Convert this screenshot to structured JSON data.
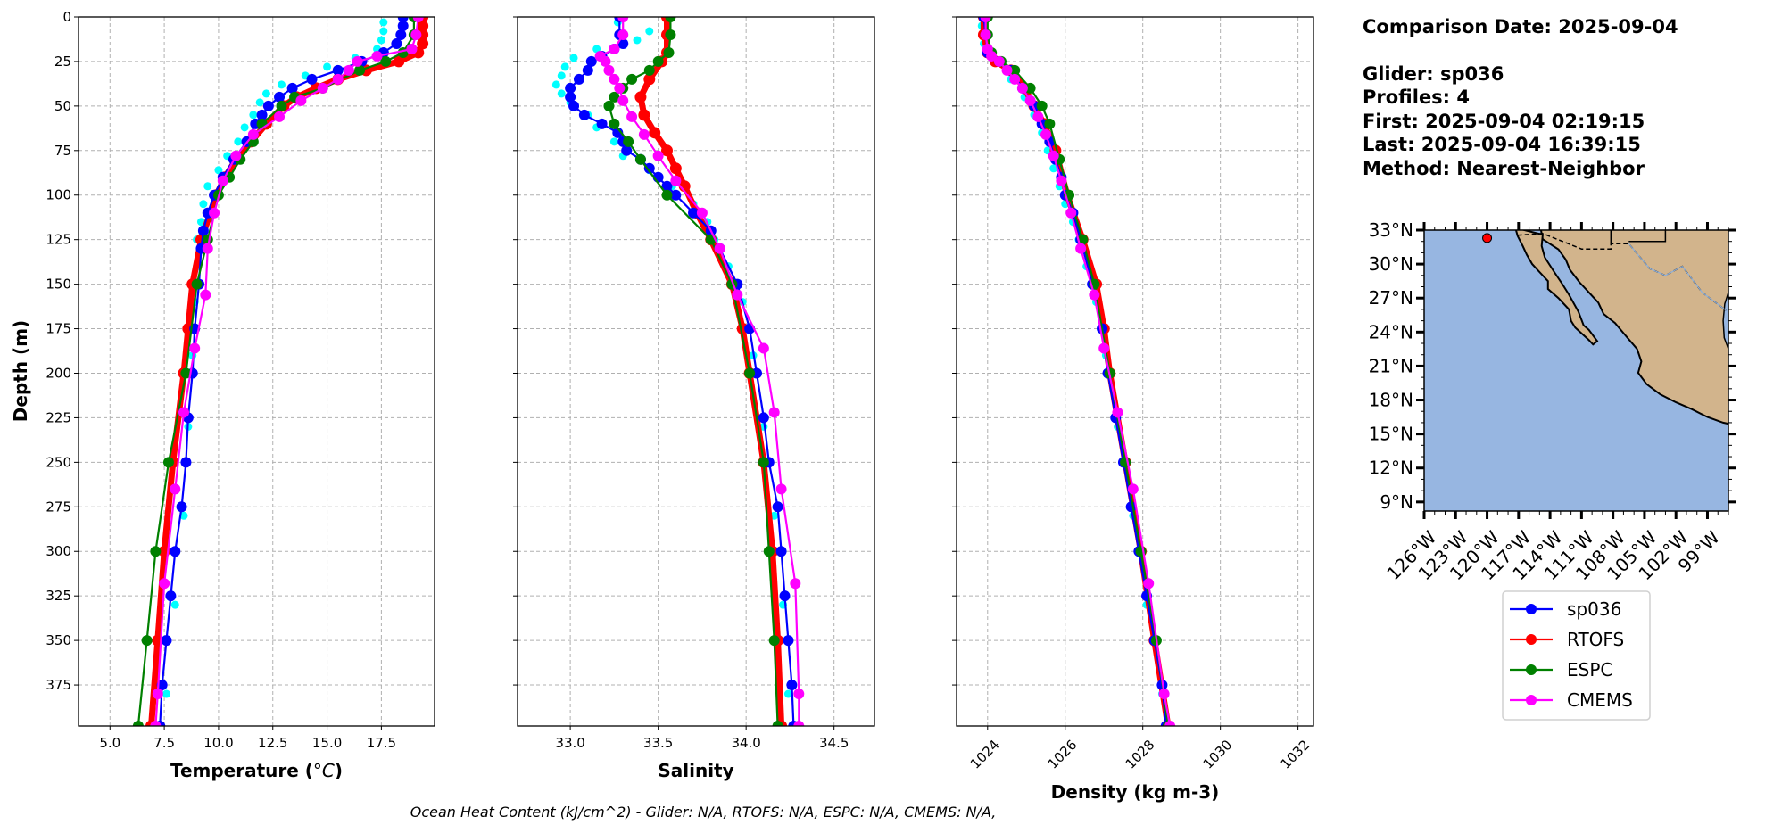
{
  "info": {
    "comparison_date": "Comparison Date: 2025-09-04",
    "glider": "Glider: sp036",
    "profiles": "Profiles: 4",
    "first": "First: 2025-09-04 02:19:15",
    "last": "Last: 2025-09-04 16:39:15",
    "method": "Method: Nearest-Neighbor"
  },
  "footer": "Ocean Heat Content (kJ/cm^2) - Glider: N/A,  RTOFS: N/A,  ESPC: N/A,  CMEMS: N/A,",
  "colors": {
    "sp036": "#0000ff",
    "RTOFS": "#ff0000",
    "ESPC": "#008000",
    "CMEMS": "#ff00ff",
    "raw": "#00ffff",
    "ocean": "#97b6e1",
    "land": "#d2b48c",
    "grid": "#b0b0b0"
  },
  "legend": {
    "placement": "below map",
    "entries": [
      "sp036",
      "RTOFS",
      "ESPC",
      "CMEMS"
    ]
  },
  "chart_data": [
    {
      "type": "line",
      "xlabel": "Temperature (°C)",
      "ylabel": "Depth (m)",
      "xlim": [
        3.55,
        19.95
      ],
      "ylim": [
        398,
        0
      ],
      "y_inverted": true,
      "grid": true,
      "xticks": [
        5.0,
        7.5,
        10.0,
        12.5,
        15.0,
        17.5
      ],
      "xtick_labels": [
        "5.0",
        "7.5",
        "10.0",
        "12.5",
        "15.0",
        "17.5"
      ],
      "yticks": [
        0,
        25,
        50,
        75,
        100,
        125,
        150,
        175,
        200,
        225,
        250,
        275,
        300,
        325,
        350,
        375
      ],
      "ytick_labels": [
        "0",
        "25",
        "50",
        "75",
        "100",
        "125",
        "150",
        "175",
        "200",
        "225",
        "250",
        "275",
        "300",
        "325",
        "350",
        "375"
      ],
      "raw": {
        "depth": [
          3,
          8,
          13,
          18,
          23,
          28,
          33,
          38,
          43,
          48,
          55,
          62,
          70,
          78,
          86,
          95,
          105,
          115,
          125,
          140,
          160,
          190,
          230,
          280,
          330,
          380
        ],
        "values": [
          17.6,
          17.6,
          17.5,
          17.3,
          16.3,
          15.0,
          14.0,
          12.9,
          12.2,
          11.9,
          11.6,
          11.2,
          10.9,
          10.4,
          10.0,
          9.5,
          9.3,
          9.2,
          9.0,
          9.0,
          8.9,
          8.8,
          8.6,
          8.4,
          8.0,
          7.6
        ]
      },
      "series": [
        {
          "name": "RTOFS",
          "depth": [
            0,
            5,
            10,
            15,
            20,
            25,
            30,
            35,
            40,
            45,
            50,
            60,
            70,
            80,
            90,
            100,
            125,
            150,
            175,
            200,
            250,
            300,
            350,
            398
          ],
          "values": [
            19.4,
            19.4,
            19.4,
            19.4,
            19.2,
            18.3,
            16.8,
            15.5,
            14.5,
            13.6,
            13.0,
            12.2,
            11.5,
            10.8,
            10.3,
            9.9,
            9.2,
            8.8,
            8.6,
            8.4,
            7.9,
            7.5,
            7.2,
            6.9
          ]
        },
        {
          "name": "sp036",
          "depth": [
            0,
            5,
            10,
            15,
            20,
            25,
            30,
            35,
            40,
            45,
            50,
            55,
            60,
            70,
            80,
            90,
            100,
            110,
            120,
            130,
            150,
            175,
            200,
            225,
            250,
            275,
            300,
            325,
            350,
            375,
            398
          ],
          "values": [
            18.5,
            18.5,
            18.4,
            18.2,
            17.6,
            16.6,
            15.5,
            14.3,
            13.4,
            12.8,
            12.3,
            12.0,
            11.7,
            11.3,
            10.7,
            10.2,
            9.8,
            9.5,
            9.3,
            9.2,
            9.1,
            8.9,
            8.8,
            8.6,
            8.5,
            8.3,
            8.0,
            7.8,
            7.6,
            7.4,
            7.3
          ]
        },
        {
          "name": "ESPC",
          "depth": [
            0,
            10,
            20,
            25,
            30,
            40,
            45,
            50,
            60,
            70,
            80,
            90,
            100,
            125,
            150,
            200,
            250,
            300,
            350,
            398
          ],
          "values": [
            19.0,
            19.0,
            18.5,
            17.7,
            16.5,
            14.8,
            13.5,
            12.9,
            12.0,
            11.6,
            11.0,
            10.5,
            10.0,
            9.5,
            9.0,
            8.5,
            7.7,
            7.1,
            6.7,
            6.3
          ]
        },
        {
          "name": "CMEMS",
          "depth": [
            0,
            10,
            18,
            22,
            25,
            30,
            35,
            40,
            47,
            56,
            66,
            78,
            92,
            110,
            130,
            156,
            186,
            222,
            265,
            318,
            380,
            398
          ],
          "values": [
            19.2,
            19.1,
            18.9,
            17.3,
            16.4,
            16.0,
            15.5,
            14.8,
            13.8,
            12.8,
            11.6,
            10.8,
            10.2,
            9.8,
            9.5,
            9.4,
            8.9,
            8.4,
            8.0,
            7.5,
            7.2,
            7.1
          ]
        }
      ]
    },
    {
      "type": "line",
      "xlabel": "Salinity",
      "xlim": [
        32.7,
        34.73
      ],
      "ylim": [
        398,
        0
      ],
      "y_inverted": true,
      "grid": true,
      "xticks": [
        33.0,
        33.5,
        34.0,
        34.5
      ],
      "xtick_labels": [
        "33.0",
        "33.5",
        "34.0",
        "34.5"
      ],
      "yticks": [
        0,
        25,
        50,
        75,
        100,
        125,
        150,
        175,
        200,
        225,
        250,
        275,
        300,
        325,
        350,
        375
      ],
      "raw": {
        "depth": [
          3,
          8,
          13,
          18,
          23,
          28,
          33,
          38,
          43,
          48,
          55,
          62,
          70,
          78,
          86,
          95,
          105,
          115,
          125,
          140,
          160,
          190,
          230,
          280,
          330,
          380
        ],
        "values": [
          33.27,
          33.45,
          33.38,
          33.15,
          33.02,
          32.97,
          32.95,
          32.92,
          32.95,
          33.0,
          33.1,
          33.15,
          33.25,
          33.3,
          33.45,
          33.58,
          33.7,
          33.78,
          33.82,
          33.9,
          33.98,
          34.04,
          34.1,
          34.16,
          34.21,
          34.24
        ]
      },
      "series": [
        {
          "name": "RTOFS",
          "depth": [
            0,
            10,
            20,
            25,
            35,
            45,
            55,
            65,
            75,
            85,
            95,
            110,
            125,
            150,
            175,
            200,
            250,
            300,
            350,
            398
          ],
          "values": [
            33.55,
            33.55,
            33.55,
            33.52,
            33.45,
            33.4,
            33.42,
            33.48,
            33.55,
            33.6,
            33.65,
            33.72,
            33.8,
            33.92,
            33.98,
            34.02,
            34.1,
            34.15,
            34.18,
            34.2
          ]
        },
        {
          "name": "sp036",
          "depth": [
            0,
            10,
            15,
            18,
            22,
            25,
            30,
            35,
            40,
            45,
            50,
            55,
            60,
            65,
            70,
            75,
            80,
            85,
            90,
            95,
            100,
            110,
            120,
            130,
            150,
            175,
            200,
            225,
            250,
            275,
            300,
            325,
            350,
            375,
            398
          ],
          "values": [
            33.28,
            33.28,
            33.3,
            33.25,
            33.18,
            33.12,
            33.1,
            33.05,
            33.0,
            33.0,
            33.02,
            33.08,
            33.18,
            33.27,
            33.3,
            33.32,
            33.4,
            33.45,
            33.5,
            33.55,
            33.6,
            33.7,
            33.8,
            33.85,
            33.95,
            34.02,
            34.06,
            34.1,
            34.13,
            34.18,
            34.2,
            34.22,
            34.24,
            34.26,
            34.27
          ]
        },
        {
          "name": "ESPC",
          "depth": [
            0,
            10,
            20,
            25,
            30,
            35,
            40,
            45,
            50,
            60,
            70,
            80,
            100,
            125,
            150,
            200,
            250,
            300,
            350,
            398
          ],
          "values": [
            33.57,
            33.57,
            33.56,
            33.5,
            33.45,
            33.35,
            33.3,
            33.25,
            33.22,
            33.25,
            33.33,
            33.4,
            33.55,
            33.8,
            33.92,
            34.02,
            34.1,
            34.13,
            34.16,
            34.18
          ]
        },
        {
          "name": "CMEMS",
          "depth": [
            0,
            10,
            18,
            22,
            25,
            30,
            35,
            40,
            47,
            56,
            66,
            78,
            92,
            110,
            130,
            156,
            186,
            222,
            265,
            318,
            380,
            398
          ],
          "values": [
            33.3,
            33.3,
            33.25,
            33.17,
            33.2,
            33.22,
            33.25,
            33.28,
            33.3,
            33.35,
            33.42,
            33.5,
            33.6,
            33.75,
            33.85,
            33.95,
            34.1,
            34.16,
            34.2,
            34.28,
            34.3,
            34.3
          ]
        }
      ]
    },
    {
      "type": "line",
      "xlabel": "Density (kg m-3)",
      "xlim": [
        1023.2,
        1032.4
      ],
      "ylim": [
        398,
        0
      ],
      "y_inverted": true,
      "grid": true,
      "xticks": [
        1024,
        1026,
        1028,
        1030,
        1032
      ],
      "xtick_labels": [
        "1024",
        "1026",
        "1028",
        "1030",
        "1032"
      ],
      "yticks": [
        0,
        25,
        50,
        75,
        100,
        125,
        150,
        175,
        200,
        225,
        250,
        275,
        300,
        325,
        350,
        375
      ],
      "raw": {
        "depth": [
          5,
          15,
          25,
          35,
          45,
          55,
          65,
          75,
          85,
          95,
          105,
          115,
          125,
          140,
          160,
          190,
          230,
          280,
          330,
          380
        ],
        "values": [
          1023.85,
          1023.9,
          1024.2,
          1024.6,
          1024.95,
          1025.2,
          1025.4,
          1025.55,
          1025.7,
          1025.85,
          1026.0,
          1026.2,
          1026.35,
          1026.55,
          1026.8,
          1027.05,
          1027.35,
          1027.75,
          1028.1,
          1028.5
        ]
      },
      "series": [
        {
          "name": "RTOFS",
          "depth": [
            0,
            10,
            20,
            25,
            30,
            40,
            50,
            60,
            75,
            100,
            125,
            150,
            175,
            200,
            250,
            300,
            350,
            398
          ],
          "values": [
            1023.9,
            1023.9,
            1024.0,
            1024.2,
            1024.6,
            1024.95,
            1025.2,
            1025.45,
            1025.75,
            1026.05,
            1026.45,
            1026.8,
            1027.0,
            1027.15,
            1027.55,
            1027.95,
            1028.3,
            1028.65
          ]
        },
        {
          "name": "sp036",
          "depth": [
            0,
            10,
            20,
            25,
            30,
            40,
            50,
            60,
            70,
            80,
            90,
            100,
            110,
            125,
            150,
            175,
            200,
            225,
            250,
            275,
            300,
            325,
            350,
            375,
            398
          ],
          "values": [
            1023.9,
            1023.95,
            1024.0,
            1024.3,
            1024.6,
            1024.9,
            1025.2,
            1025.4,
            1025.6,
            1025.75,
            1025.9,
            1026.0,
            1026.2,
            1026.4,
            1026.7,
            1026.95,
            1027.1,
            1027.3,
            1027.5,
            1027.7,
            1027.9,
            1028.1,
            1028.3,
            1028.5,
            1028.6
          ]
        },
        {
          "name": "ESPC",
          "depth": [
            0,
            10,
            20,
            25,
            30,
            40,
            50,
            60,
            80,
            100,
            125,
            150,
            200,
            250,
            300,
            350,
            398
          ],
          "values": [
            1024.0,
            1024.0,
            1024.1,
            1024.35,
            1024.7,
            1025.1,
            1025.4,
            1025.6,
            1025.85,
            1026.1,
            1026.45,
            1026.75,
            1027.15,
            1027.55,
            1027.95,
            1028.35,
            1028.65
          ]
        },
        {
          "name": "CMEMS",
          "depth": [
            0,
            10,
            18,
            22,
            25,
            30,
            35,
            40,
            47,
            56,
            66,
            78,
            92,
            110,
            130,
            156,
            186,
            222,
            265,
            318,
            380,
            398
          ],
          "values": [
            1023.95,
            1023.95,
            1024.0,
            1024.1,
            1024.3,
            1024.5,
            1024.7,
            1024.9,
            1025.1,
            1025.3,
            1025.5,
            1025.7,
            1025.9,
            1026.15,
            1026.4,
            1026.75,
            1027.0,
            1027.35,
            1027.75,
            1028.15,
            1028.55,
            1028.7
          ]
        }
      ]
    }
  ],
  "map": {
    "lon_range": [
      -126,
      -97
    ],
    "lat_range": [
      8.2,
      33
    ],
    "lat_ticks": [
      33,
      30,
      27,
      24,
      21,
      18,
      15,
      12,
      9
    ],
    "lat_labels": [
      "33°N",
      "30°N",
      "27°N",
      "24°N",
      "21°N",
      "18°N",
      "15°N",
      "12°N",
      "9°N"
    ],
    "lon_ticks": [
      -126,
      -123,
      -120,
      -117,
      -114,
      -111,
      -108,
      -105,
      -102,
      -99
    ],
    "lon_labels": [
      "126°W",
      "123°W",
      "120°W",
      "117°W",
      "114°W",
      "111°W",
      "108°W",
      "105°W",
      "102°W",
      "99°W"
    ],
    "glider_position": {
      "lon": -120.0,
      "lat": 32.3,
      "color": "#ff0000"
    }
  }
}
